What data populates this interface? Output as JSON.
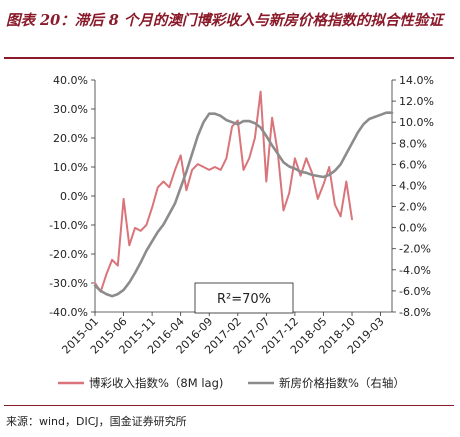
{
  "title": "图表 20：滞后 8 个月的澳门博彩收入与新房价格指数的拟合性验证",
  "source": "来源：wind，DICJ，国金证券研究所",
  "chart_data": {
    "type": "line",
    "left_axis": {
      "min": -40,
      "max": 40,
      "step": 10,
      "ticks": [
        "40.0%",
        "30.0%",
        "20.0%",
        "10.0%",
        "0.0%",
        "-10.0%",
        "-20.0%",
        "-30.0%",
        "-40.0%"
      ]
    },
    "right_axis": {
      "min": -8,
      "max": 14,
      "step": 2,
      "ticks": [
        "14.0%",
        "12.0%",
        "10.0%",
        "8.0%",
        "6.0%",
        "4.0%",
        "2.0%",
        "0.0%",
        "-2.0%",
        "-4.0%",
        "-6.0%",
        "-8.0%"
      ]
    },
    "x_ticks": [
      "2015-01",
      "2015-06",
      "2015-11",
      "2016-04",
      "2016-09",
      "2017-02",
      "2017-07",
      "2017-12",
      "2018-05",
      "2018-10",
      "2019-03"
    ],
    "x_start": "2015-01",
    "x_end": "2019-05",
    "annotation": "R²=70%",
    "series": [
      {
        "name": "博彩收入指数%（8M lag)",
        "axis": "left",
        "color": "#d9757a",
        "x": [
          "2015-01",
          "2015-02",
          "2015-03",
          "2015-04",
          "2015-05",
          "2015-06",
          "2015-07",
          "2015-08",
          "2015-09",
          "2015-10",
          "2015-11",
          "2015-12",
          "2016-01",
          "2016-02",
          "2016-03",
          "2016-04",
          "2016-05",
          "2016-06",
          "2016-07",
          "2016-08",
          "2016-09",
          "2016-10",
          "2016-11",
          "2016-12",
          "2017-01",
          "2017-02",
          "2017-03",
          "2017-04",
          "2017-05",
          "2017-06",
          "2017-07",
          "2017-08",
          "2017-09",
          "2017-10",
          "2017-11",
          "2017-12",
          "2018-01",
          "2018-02",
          "2018-03",
          "2018-04",
          "2018-05",
          "2018-06",
          "2018-07",
          "2018-08",
          "2018-09",
          "2018-10"
        ],
        "values": [
          -30,
          -33,
          -27,
          -22,
          -24,
          -1,
          -17,
          -11,
          -12,
          -10,
          -4,
          3,
          5,
          3,
          9,
          14,
          2,
          9,
          11,
          10,
          9,
          10,
          9,
          13,
          24,
          26,
          9,
          13,
          20,
          36,
          5,
          27,
          15,
          -5,
          1,
          13,
          7,
          13,
          8,
          -1,
          4,
          10,
          -3,
          -7,
          5,
          -8
        ]
      },
      {
        "name": "新房价格指数%（右轴）",
        "axis": "right",
        "color": "#8c8c8c",
        "x": [
          "2015-01",
          "2015-02",
          "2015-03",
          "2015-04",
          "2015-05",
          "2015-06",
          "2015-07",
          "2015-08",
          "2015-09",
          "2015-10",
          "2015-11",
          "2015-12",
          "2016-01",
          "2016-02",
          "2016-03",
          "2016-04",
          "2016-05",
          "2016-06",
          "2016-07",
          "2016-08",
          "2016-09",
          "2016-10",
          "2016-11",
          "2016-12",
          "2017-01",
          "2017-02",
          "2017-03",
          "2017-04",
          "2017-05",
          "2017-06",
          "2017-07",
          "2017-08",
          "2017-09",
          "2017-10",
          "2017-11",
          "2017-12",
          "2018-01",
          "2018-02",
          "2018-03",
          "2018-04",
          "2018-05",
          "2018-06",
          "2018-07",
          "2018-08",
          "2018-09",
          "2018-10",
          "2018-11",
          "2018-12",
          "2019-01",
          "2019-02",
          "2019-03",
          "2019-04",
          "2019-05"
        ],
        "values": [
          -5.5,
          -6.0,
          -6.3,
          -6.5,
          -6.3,
          -5.9,
          -5.2,
          -4.3,
          -3.3,
          -2.2,
          -1.3,
          -0.4,
          0.3,
          1.3,
          2.3,
          3.8,
          5.3,
          7.0,
          8.7,
          10.0,
          10.8,
          10.8,
          10.6,
          10.2,
          10.0,
          9.8,
          10.1,
          10.1,
          9.9,
          9.5,
          8.7,
          7.8,
          7.0,
          6.2,
          5.8,
          5.6,
          5.3,
          5.2,
          5.0,
          4.9,
          4.8,
          5.0,
          5.4,
          6.0,
          7.0,
          8.0,
          9.0,
          9.8,
          10.3,
          10.5,
          10.7,
          10.9,
          10.9
        ]
      }
    ]
  }
}
